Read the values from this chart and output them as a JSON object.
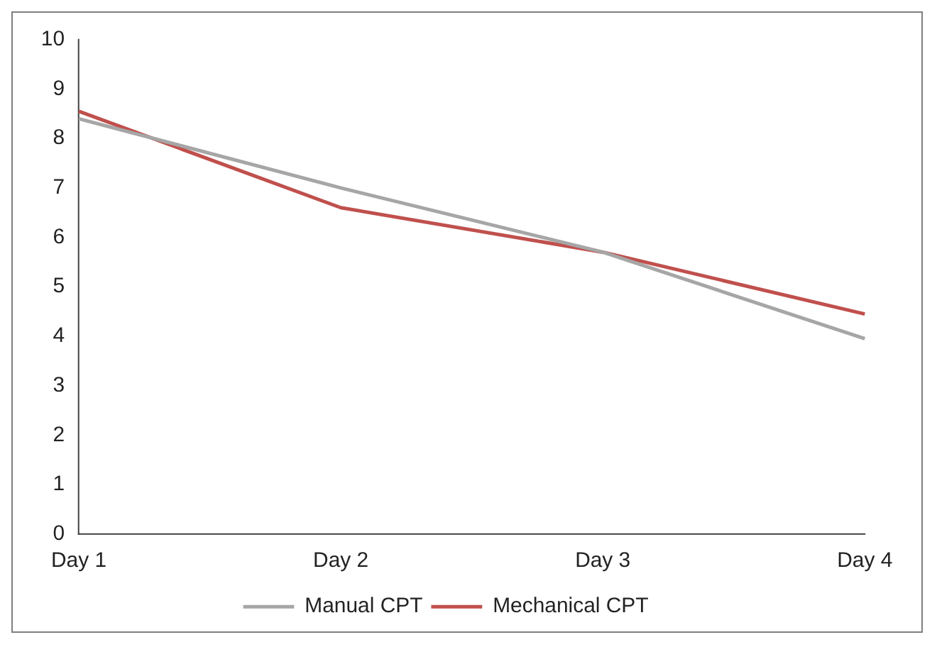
{
  "chart_data": {
    "type": "line",
    "categories": [
      "Day 1",
      "Day 2",
      "Day 3",
      "Day 4"
    ],
    "series": [
      {
        "name": "Manual CPT",
        "color": "#a6a6a6",
        "values": [
          8.4,
          7.0,
          5.7,
          3.95
        ]
      },
      {
        "name": "Mechanical CPT",
        "color": "#c0504d",
        "values": [
          8.55,
          6.6,
          5.7,
          4.45
        ]
      }
    ],
    "ylim": [
      0,
      10
    ],
    "yticks": [
      0,
      1,
      2,
      3,
      4,
      5,
      6,
      7,
      8,
      9,
      10
    ],
    "grid": false,
    "legend": "bottom",
    "marker": "none",
    "line_style": "solid"
  }
}
